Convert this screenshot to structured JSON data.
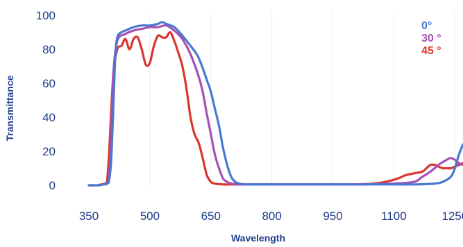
{
  "chart_data": {
    "type": "line",
    "xlabel": "Wavelength",
    "ylabel": "Transmittance",
    "xlim": [
      350,
      1270
    ],
    "ylim": [
      0,
      100
    ],
    "x_ticks": [
      "350",
      "500",
      "650",
      "800",
      "950",
      "1100",
      "1250"
    ],
    "y_ticks": [
      "0",
      "20",
      "40",
      "60",
      "80",
      "100"
    ],
    "grid": true,
    "legend_position": "top-right",
    "series": [
      {
        "name": "0°",
        "color": "#4a78cf",
        "x": [
          350,
          375,
          385,
          395,
          400,
          405,
          410,
          415,
          420,
          430,
          440,
          460,
          480,
          500,
          520,
          530,
          540,
          560,
          580,
          600,
          620,
          640,
          650,
          660,
          670,
          680,
          690,
          700,
          710,
          720,
          740,
          800,
          900,
          1000,
          1100,
          1150,
          1200,
          1220,
          1240,
          1250,
          1260,
          1270
        ],
        "y": [
          0,
          0,
          0.5,
          1,
          3,
          15,
          45,
          75,
          87,
          90,
          91,
          93,
          94,
          94,
          95,
          96,
          95,
          93,
          88,
          82,
          75,
          62,
          55,
          45,
          35,
          22,
          12,
          5,
          2,
          1,
          0.5,
          0.5,
          0.5,
          0.5,
          0.5,
          0.5,
          1,
          2,
          5,
          10,
          18,
          24
        ]
      },
      {
        "name": "30 °",
        "color": "#a64fb5",
        "x": [
          350,
          375,
          385,
          395,
          400,
          405,
          410,
          420,
          440,
          460,
          480,
          500,
          520,
          540,
          560,
          580,
          600,
          620,
          630,
          640,
          650,
          660,
          670,
          680,
          690,
          700,
          720,
          800,
          900,
          1000,
          1100,
          1150,
          1170,
          1190,
          1210,
          1230,
          1240,
          1250,
          1260,
          1270
        ],
        "y": [
          0,
          0,
          0.5,
          1,
          5,
          30,
          65,
          85,
          89,
          91,
          92,
          93,
          93,
          94,
          91,
          86,
          77,
          64,
          55,
          42,
          30,
          18,
          10,
          4,
          2,
          1,
          0.5,
          0.5,
          0.5,
          0.5,
          1,
          2,
          5,
          8,
          12,
          15,
          16,
          15,
          13,
          12
        ]
      },
      {
        "name": "45 °",
        "color": "#d9362f",
        "x": [
          350,
          370,
          380,
          390,
          395,
          400,
          410,
          420,
          430,
          440,
          450,
          460,
          470,
          480,
          490,
          500,
          510,
          520,
          530,
          540,
          550,
          560,
          570,
          580,
          590,
          600,
          610,
          620,
          630,
          640,
          650,
          660,
          680,
          700,
          800,
          900,
          1000,
          1050,
          1080,
          1110,
          1130,
          1150,
          1170,
          1180,
          1190,
          1200,
          1210,
          1220,
          1230,
          1240,
          1250,
          1260,
          1270
        ],
        "y": [
          0,
          0,
          0.5,
          1,
          3,
          20,
          65,
          80,
          82,
          86,
          80,
          86,
          87,
          80,
          71,
          72,
          82,
          88,
          87,
          87,
          90,
          85,
          78,
          70,
          57,
          40,
          30,
          25,
          16,
          6,
          2,
          1,
          0.5,
          0.5,
          0.5,
          0.5,
          0.5,
          1,
          2,
          4,
          6,
          7,
          8,
          10,
          12,
          12,
          11,
          10,
          10,
          10,
          11,
          12,
          13
        ]
      }
    ]
  }
}
